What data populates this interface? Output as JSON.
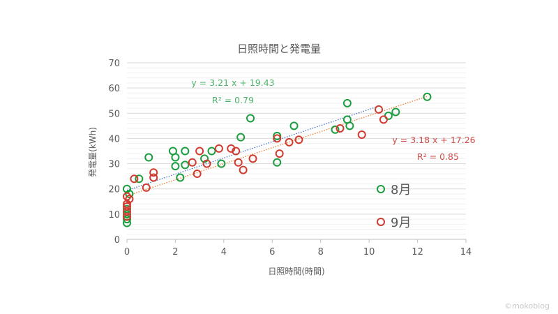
{
  "chart_data": {
    "type": "scatter",
    "title": "日照時間と発電量",
    "xlabel": "日照時間(時間)",
    "ylabel": "発電量(kWh)",
    "xlim": [
      0,
      14
    ],
    "ylim": [
      0,
      70
    ],
    "x_ticks": [
      "0",
      "2",
      "4",
      "6",
      "8",
      "10",
      "12",
      "14"
    ],
    "y_ticks": [
      "0",
      "10",
      "20",
      "30",
      "40",
      "50",
      "60",
      "70"
    ],
    "grid": true,
    "legend": "right",
    "series": [
      {
        "name": "8月",
        "color": "#1a9e3f",
        "trend_color": "#4472c4",
        "equation": "y = 3.21 x + 19.43",
        "r2": "R² = 0.79",
        "trendline": {
          "slope": 3.21,
          "intercept": 19.43,
          "x_range": [
            0,
            10.4
          ]
        },
        "points": [
          [
            0,
            6.5
          ],
          [
            0,
            8
          ],
          [
            0,
            10
          ],
          [
            0,
            12
          ],
          [
            0,
            20
          ],
          [
            0.1,
            18
          ],
          [
            0.5,
            24
          ],
          [
            0.9,
            32.5
          ],
          [
            1.9,
            35
          ],
          [
            2.0,
            29
          ],
          [
            2.0,
            32.5
          ],
          [
            2.2,
            24.5
          ],
          [
            2.4,
            29.5
          ],
          [
            2.4,
            35
          ],
          [
            3.2,
            32
          ],
          [
            3.5,
            35
          ],
          [
            3.9,
            30
          ],
          [
            4.7,
            40.5
          ],
          [
            5.1,
            48
          ],
          [
            6.2,
            30.5
          ],
          [
            6.2,
            41
          ],
          [
            6.9,
            45
          ],
          [
            8.6,
            43.5
          ],
          [
            9.1,
            54
          ],
          [
            9.1,
            47.5
          ],
          [
            9.2,
            45
          ],
          [
            10.8,
            49
          ],
          [
            11.1,
            50.5
          ],
          [
            12.4,
            56.5
          ]
        ]
      },
      {
        "name": "9月",
        "color": "#d13b2f",
        "trend_color": "#ed7d31",
        "equation": "y = 3.18 x + 17.26",
        "r2": "R² = 0.85",
        "trendline": {
          "slope": 3.18,
          "intercept": 17.26,
          "x_range": [
            0,
            12.4
          ]
        },
        "points": [
          [
            0,
            9
          ],
          [
            0,
            11
          ],
          [
            0,
            13
          ],
          [
            0,
            14
          ],
          [
            0,
            17
          ],
          [
            0.1,
            16
          ],
          [
            0.3,
            24
          ],
          [
            0.8,
            20.5
          ],
          [
            1.1,
            24.5
          ],
          [
            1.1,
            26.5
          ],
          [
            2.7,
            30.5
          ],
          [
            2.9,
            26
          ],
          [
            3.0,
            35
          ],
          [
            3.3,
            30
          ],
          [
            3.8,
            36
          ],
          [
            4.3,
            36
          ],
          [
            4.5,
            35
          ],
          [
            4.6,
            30.5
          ],
          [
            4.8,
            27.5
          ],
          [
            5.2,
            32
          ],
          [
            6.2,
            40
          ],
          [
            6.3,
            34
          ],
          [
            6.7,
            38.5
          ],
          [
            7.1,
            39.5
          ],
          [
            8.8,
            44
          ],
          [
            9.7,
            41.5
          ],
          [
            10.4,
            51.5
          ],
          [
            10.6,
            47.5
          ]
        ]
      }
    ]
  },
  "watermark": "©mokoblog"
}
